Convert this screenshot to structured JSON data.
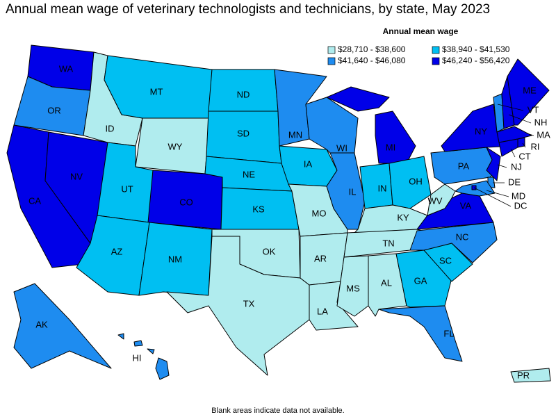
{
  "title": "Annual mean wage of veterinary technologists and technicians, by state, May 2023",
  "legend": {
    "title": "Annual mean wage",
    "items": [
      {
        "label": "$28,710 - $38,600",
        "color": "#b0ecee"
      },
      {
        "label": "$38,940 - $41,530",
        "color": "#00bff2"
      },
      {
        "label": "$41,640 - $46,080",
        "color": "#1e8cf0"
      },
      {
        "label": "$46,240 - $56,420",
        "color": "#0000e8"
      }
    ]
  },
  "states": [
    {
      "label": "WA",
      "bin": 3
    },
    {
      "label": "OR",
      "bin": 2
    },
    {
      "label": "CA",
      "bin": 3
    },
    {
      "label": "NV",
      "bin": 3
    },
    {
      "label": "ID",
      "bin": 0
    },
    {
      "label": "MT",
      "bin": 1
    },
    {
      "label": "WY",
      "bin": 0
    },
    {
      "label": "UT",
      "bin": 1
    },
    {
      "label": "CO",
      "bin": 3
    },
    {
      "label": "AZ",
      "bin": 1
    },
    {
      "label": "NM",
      "bin": 1
    },
    {
      "label": "ND",
      "bin": 1
    },
    {
      "label": "SD",
      "bin": 1
    },
    {
      "label": "NE",
      "bin": 1
    },
    {
      "label": "KS",
      "bin": 1
    },
    {
      "label": "OK",
      "bin": 0
    },
    {
      "label": "TX",
      "bin": 0
    },
    {
      "label": "MN",
      "bin": 2
    },
    {
      "label": "IA",
      "bin": 1
    },
    {
      "label": "MO",
      "bin": 0
    },
    {
      "label": "AR",
      "bin": 0
    },
    {
      "label": "LA",
      "bin": 0
    },
    {
      "label": "WI",
      "bin": 2
    },
    {
      "label": "IL",
      "bin": 2
    },
    {
      "label": "MI",
      "bin": 3
    },
    {
      "label": "IN",
      "bin": 1
    },
    {
      "label": "OH",
      "bin": 1
    },
    {
      "label": "KY",
      "bin": 0
    },
    {
      "label": "TN",
      "bin": 0
    },
    {
      "label": "MS",
      "bin": 0
    },
    {
      "label": "AL",
      "bin": 0
    },
    {
      "label": "GA",
      "bin": 1
    },
    {
      "label": "FL",
      "bin": 2
    },
    {
      "label": "SC",
      "bin": 1
    },
    {
      "label": "NC",
      "bin": 2
    },
    {
      "label": "VA",
      "bin": 3
    },
    {
      "label": "WV",
      "bin": 0
    },
    {
      "label": "PA",
      "bin": 2
    },
    {
      "label": "NY",
      "bin": 3
    },
    {
      "label": "VT",
      "bin": 2
    },
    {
      "label": "NH",
      "bin": 3
    },
    {
      "label": "ME",
      "bin": 3
    },
    {
      "label": "MA",
      "bin": 3
    },
    {
      "label": "RI",
      "bin": 3
    },
    {
      "label": "CT",
      "bin": 3
    },
    {
      "label": "NJ",
      "bin": 3
    },
    {
      "label": "DE",
      "bin": 2
    },
    {
      "label": "MD",
      "bin": 2
    },
    {
      "label": "DC",
      "bin": 3
    },
    {
      "label": "AK",
      "bin": 2
    },
    {
      "label": "HI",
      "bin": 2
    },
    {
      "label": "PR",
      "bin": 0
    }
  ],
  "footnote": "Blank areas indicate data not available."
}
